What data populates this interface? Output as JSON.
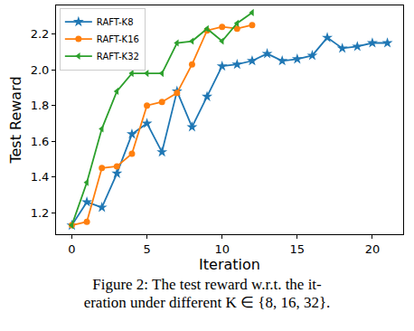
{
  "chart_data": {
    "type": "line",
    "x_label": "Iteration",
    "y_label": "Test Reward",
    "xlim": [
      -1.05,
      22.05
    ],
    "xticks": [
      0,
      5,
      10,
      15,
      20
    ],
    "ylim": [
      1.08,
      2.36
    ],
    "yticks": [
      1.2,
      1.4,
      1.6,
      1.8,
      {
        "value": 2.0,
        "label": "2.0"
      },
      2.2
    ],
    "grid": false,
    "legend": "upper left",
    "series": [
      {
        "name": "RAFT-K8",
        "color": "#1f77b4",
        "marker": "star",
        "line_style": "solid",
        "x": [
          0,
          1,
          2,
          3,
          4,
          5,
          6,
          7,
          8,
          9,
          10,
          11,
          12,
          13,
          14,
          15,
          16,
          17,
          18,
          19,
          20,
          21
        ],
        "values": [
          1.13,
          1.26,
          1.23,
          1.42,
          1.64,
          1.7,
          1.54,
          1.88,
          1.68,
          1.85,
          2.02,
          2.03,
          2.05,
          2.09,
          2.05,
          2.06,
          2.08,
          2.18,
          2.12,
          2.13,
          2.15,
          2.15
        ]
      },
      {
        "name": "RAFT-K16",
        "color": "#ff7f0e",
        "marker": "circle",
        "line_style": "solid",
        "x": [
          0,
          1,
          2,
          3,
          4,
          5,
          6,
          7,
          8,
          9,
          10,
          11,
          12
        ],
        "values": [
          1.13,
          1.15,
          1.45,
          1.46,
          1.53,
          1.8,
          1.82,
          1.87,
          2.03,
          2.22,
          2.24,
          2.23,
          2.25
        ]
      },
      {
        "name": "RAFT-K32",
        "color": "#2ca02c",
        "marker": "triangle-left",
        "line_style": "solid",
        "x": [
          0,
          1,
          2,
          3,
          4,
          5,
          6,
          7,
          8,
          9,
          10,
          11,
          12
        ],
        "values": [
          1.13,
          1.37,
          1.67,
          1.88,
          1.98,
          1.98,
          1.98,
          2.15,
          2.16,
          2.23,
          2.16,
          2.26,
          2.32
        ]
      }
    ]
  },
  "caption": [
    "Figure 2: The test reward w.r.t. the it-",
    "eration under different K ∈ {8, 16, 32}."
  ]
}
